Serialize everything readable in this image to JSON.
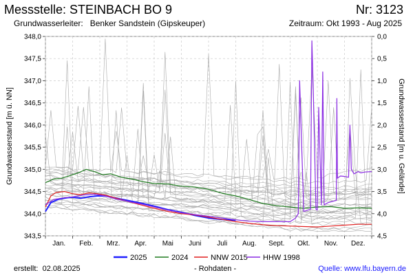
{
  "header": {
    "title": "Messstelle: STEINBACH BO 9",
    "number": "Nr: 3123",
    "aquifer_label": "Grundwasserleiter:",
    "aquifer_value": "Benker Sandstein (Gipskeuper)",
    "period": "Zeitraum: Okt 1993 - Aug 2025"
  },
  "footer": {
    "created_label": "erstellt:",
    "created_date": "02.08.2025",
    "raw_data": "- Rohdaten -",
    "source_label": "Quelle:",
    "source_url": "www.lfu.bayern.de"
  },
  "chart_data": {
    "type": "line",
    "ylabel": "Grundwasserstand [m ü. NN]",
    "ylabel_right": "Grundwasserstand [m u. Gelände]",
    "ylim": [
      343.5,
      348.0
    ],
    "ylim_right": [
      0.0,
      4.5
    ],
    "y_ticks": [
      "348,0",
      "347,5",
      "347,0",
      "346,5",
      "346,0",
      "345,5",
      "345,0",
      "344,5",
      "344,0",
      "343,5"
    ],
    "y_ticks_right": [
      "0,0",
      "0,5",
      "1,0",
      "1,5",
      "2,0",
      "2,5",
      "3,0",
      "3,5",
      "4,0",
      "4,5"
    ],
    "categories": [
      "Jan.",
      "Feb.",
      "Mrz.",
      "Apr.",
      "Mai",
      "Juni",
      "Juli",
      "Aug.",
      "Sept.",
      "Okt.",
      "Nov.",
      "Dez."
    ],
    "grid": true,
    "legend_position": "bottom",
    "series": [
      {
        "name": "2025",
        "color": "#1f1fff",
        "width": 2,
        "x": [
          0,
          0.2,
          0.5,
          0.8,
          1.0,
          1.3,
          1.6,
          1.9,
          2.2,
          2.6,
          3.0,
          3.5,
          4.0,
          4.5,
          5.0,
          5.5,
          6.0,
          6.5,
          7.0
        ],
        "values": [
          344.05,
          344.25,
          344.33,
          344.36,
          344.37,
          344.35,
          344.38,
          344.4,
          344.4,
          344.35,
          344.3,
          344.24,
          344.17,
          344.09,
          344.03,
          343.96,
          343.9,
          343.87,
          343.85
        ]
      },
      {
        "name": "2024",
        "color": "#1f7a1f",
        "width": 1.2,
        "x": [
          0,
          0.3,
          0.6,
          0.9,
          1.2,
          1.5,
          1.8,
          2.1,
          2.4,
          2.8,
          3.2,
          3.6,
          4.0,
          4.5,
          5.0,
          5.5,
          6.0,
          6.5,
          7.0,
          7.5,
          8.0,
          8.5,
          9.0,
          9.5,
          10.0,
          10.5,
          11.0,
          11.5,
          12.0
        ],
        "values": [
          344.7,
          344.78,
          344.8,
          344.86,
          344.92,
          345.0,
          344.95,
          344.88,
          344.9,
          344.82,
          344.78,
          344.72,
          344.68,
          344.67,
          344.62,
          344.6,
          344.55,
          344.46,
          344.4,
          344.32,
          344.23,
          344.18,
          344.15,
          344.12,
          344.15,
          344.16,
          344.12,
          344.13,
          344.12
        ]
      },
      {
        "name": "NNW 2015",
        "color": "#e01f1f",
        "width": 1.2,
        "x": [
          0,
          0.2,
          0.4,
          0.7,
          1.0,
          1.3,
          1.6,
          1.9,
          2.2,
          2.6,
          3.0,
          3.5,
          4.0,
          4.5,
          5.0,
          5.5,
          6.0,
          6.5,
          7.0,
          7.5,
          8.0,
          8.5,
          9.0,
          9.5,
          10.0,
          10.5,
          11.0,
          11.5,
          12.0
        ],
        "values": [
          344.15,
          344.4,
          344.48,
          344.5,
          344.45,
          344.43,
          344.47,
          344.45,
          344.42,
          344.35,
          344.28,
          344.2,
          344.12,
          344.05,
          344.0,
          343.97,
          343.92,
          343.87,
          343.82,
          343.78,
          343.75,
          343.73,
          343.72,
          343.71,
          343.7,
          343.72,
          343.74,
          343.76,
          343.76
        ]
      },
      {
        "name": "HHW 1998",
        "color": "#8a2be2",
        "width": 1.2,
        "x": [
          0,
          0.3,
          0.6,
          1.0,
          1.4,
          1.8,
          2.2,
          2.6,
          3.0,
          3.5,
          4.0,
          4.5,
          5.0,
          5.5,
          6.0,
          6.5,
          7.0,
          7.5,
          8.0,
          8.5,
          9.0,
          9.2,
          9.25,
          9.3,
          9.35,
          9.5,
          9.75,
          9.8,
          9.85,
          9.95,
          10.0,
          10.05,
          10.15,
          10.2,
          10.25,
          10.4,
          10.7,
          10.72,
          10.74,
          10.85,
          11.0,
          11.15,
          11.2,
          11.25,
          11.35,
          11.5,
          11.6,
          11.75,
          12.0
        ],
        "values": [
          344.2,
          344.32,
          344.35,
          344.38,
          344.42,
          344.44,
          344.4,
          344.33,
          344.28,
          344.22,
          344.15,
          344.08,
          344.02,
          343.98,
          343.94,
          343.9,
          343.86,
          343.83,
          343.82,
          343.82,
          343.82,
          343.9,
          343.95,
          344.0,
          347.0,
          344.05,
          344.1,
          347.9,
          346.8,
          344.1,
          344.08,
          346.4,
          344.2,
          347.2,
          344.2,
          344.25,
          344.3,
          346.6,
          344.8,
          344.85,
          344.84,
          344.82,
          346.0,
          345.0,
          344.9,
          344.95,
          344.92,
          344.94,
          344.95
        ]
      }
    ],
    "background_years": "historical years (grey)"
  }
}
